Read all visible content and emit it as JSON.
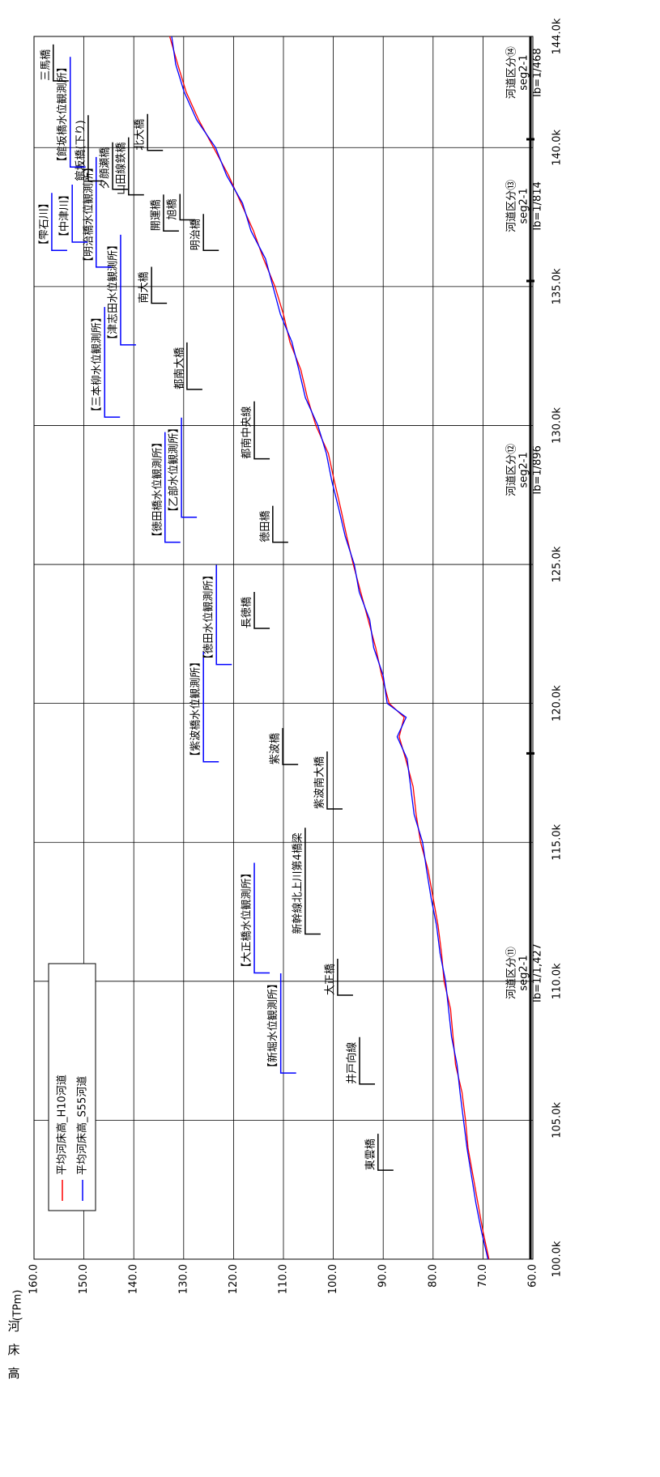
{
  "chart_data": {
    "type": "line",
    "ylabel": "河床高",
    "yunit": "(TPm)",
    "xlim": [
      100,
      144
    ],
    "ylim": [
      60,
      160
    ],
    "xticks": [
      {
        "value": 100,
        "label": "100.0k"
      },
      {
        "value": 105,
        "label": "105.0k"
      },
      {
        "value": 110,
        "label": "110.0k"
      },
      {
        "value": 115,
        "label": "115.0k"
      },
      {
        "value": 120,
        "label": "120.0k"
      },
      {
        "value": 125,
        "label": "125.0k"
      },
      {
        "value": 130,
        "label": "130.0k"
      },
      {
        "value": 135,
        "label": "135.0k"
      },
      {
        "value": 140,
        "label": "140.0k"
      },
      {
        "value": 144,
        "label": "144.0k"
      }
    ],
    "yticks": [
      {
        "value": 60,
        "label": "60.0"
      },
      {
        "value": 70,
        "label": "70.0"
      },
      {
        "value": 80,
        "label": "80.0"
      },
      {
        "value": 90,
        "label": "90.0"
      },
      {
        "value": 100,
        "label": "100.0"
      },
      {
        "value": 110,
        "label": "110.0"
      },
      {
        "value": 120,
        "label": "120.0"
      },
      {
        "value": 130,
        "label": "130.0"
      },
      {
        "value": 140,
        "label": "140.0"
      },
      {
        "value": 150,
        "label": "150.0"
      },
      {
        "value": 160,
        "label": "160.0"
      }
    ],
    "grid": true,
    "legend": "upper-left",
    "x": [
      100,
      101,
      102,
      103,
      104,
      105,
      106,
      107,
      108,
      109,
      110,
      111,
      112,
      113,
      114,
      115,
      116,
      117,
      118,
      118.8,
      119.5,
      120,
      121,
      122,
      123,
      124,
      125,
      126,
      127,
      128,
      129,
      130,
      131,
      132,
      133,
      134,
      135,
      136,
      137,
      138,
      139,
      140,
      141,
      142,
      143,
      144
    ],
    "series": [
      {
        "name": "平均河床高_H10河道",
        "color": "#ff0000",
        "values": [
          68.8,
          70,
          71,
          72,
          73,
          73.5,
          74.2,
          75.5,
          76,
          76.5,
          77.8,
          78.3,
          79,
          80,
          81,
          82.5,
          83.4,
          84,
          85.5,
          86.8,
          85.8,
          88.8,
          90.3,
          91.5,
          93,
          94.5,
          96,
          97.3,
          98.5,
          99.8,
          101,
          103.5,
          105.2,
          106.5,
          108.7,
          110,
          111.7,
          114,
          116,
          118.5,
          121,
          124,
          127,
          129.5,
          131.2,
          132.8
        ]
      },
      {
        "name": "平均河床高_S55河道",
        "color": "#0000ff",
        "values": [
          69,
          70.3,
          71.4,
          72.3,
          73.2,
          73.9,
          74.6,
          75.2,
          76.3,
          76.9,
          77.5,
          78.6,
          79.3,
          80.4,
          81.3,
          82.1,
          83.8,
          84.5,
          85.2,
          87.2,
          85.4,
          89.2,
          90,
          91.9,
          92.7,
          94.8,
          95.8,
          97.6,
          98.9,
          100.3,
          101.4,
          103.1,
          105.6,
          106.9,
          108.3,
          110.6,
          112.1,
          113.6,
          116.5,
          118.2,
          121.4,
          123.6,
          127.4,
          129.9,
          131.6,
          132.4
        ]
      }
    ],
    "sections": [
      {
        "x": 110.3,
        "label": "河道区分⑪",
        "seg": "seg2-1",
        "ib": "Ib=1/1,427"
      },
      {
        "x": 128.4,
        "label": "河道区分⑫",
        "seg": "seg2-1",
        "ib": "Ib=1/896"
      },
      {
        "x": 137.9,
        "label": "河道区分⑬",
        "seg": "seg2-1",
        "ib": "Ib=1/814"
      },
      {
        "x": 142.7,
        "label": "河道区分⑭",
        "seg": "seg2-1",
        "ib": "Ib=1/468"
      }
    ],
    "section_boundaries": [
      118.2,
      135.2,
      140.3
    ],
    "annotations": [
      {
        "text": "東雲橋",
        "x": 103.2,
        "y": 92.5,
        "color": "#000000"
      },
      {
        "text": "井戸向線",
        "x": 106.3,
        "y": 96.2,
        "color": "#000000"
      },
      {
        "text": "大正橋",
        "x": 109.5,
        "y": 100.6,
        "color": "#000000"
      },
      {
        "text": "新幹線北上川第4橋梁",
        "x": 111.7,
        "y": 107.1,
        "color": "#000000"
      },
      {
        "text": "【新堀水位観測所】",
        "x": 106.7,
        "y": 112,
        "color": "#0000ff"
      },
      {
        "text": "【大正橋水位観測所】",
        "x": 110.3,
        "y": 117.3,
        "color": "#0000ff"
      },
      {
        "text": "紫波南大橋",
        "x": 116.2,
        "y": 102.7,
        "color": "#000000"
      },
      {
        "text": "紫波橋",
        "x": 117.8,
        "y": 111.6,
        "color": "#000000"
      },
      {
        "text": "【紫波橋水位観測所】",
        "x": 117.9,
        "y": 127.5,
        "color": "#0000ff"
      },
      {
        "text": "【徳田水位観測所】",
        "x": 121.4,
        "y": 124.9,
        "color": "#0000ff"
      },
      {
        "text": "長徳橋",
        "x": 122.7,
        "y": 117.3,
        "color": "#000000"
      },
      {
        "text": "徳田橋",
        "x": 125.8,
        "y": 113.6,
        "color": "#000000"
      },
      {
        "text": "【徳田橋水位観測所】",
        "x": 125.8,
        "y": 135.2,
        "color": "#0000ff"
      },
      {
        "text": "【乙部水位観測所】",
        "x": 126.7,
        "y": 131.9,
        "color": "#0000ff"
      },
      {
        "text": "都南中央線",
        "x": 128.8,
        "y": 117.3,
        "color": "#000000"
      },
      {
        "text": "都南大橋",
        "x": 131.3,
        "y": 130.8,
        "color": "#000000"
      },
      {
        "text": "【三本柳水位観測所】",
        "x": 130.3,
        "y": 147.3,
        "color": "#0000ff"
      },
      {
        "text": "【津志田水位観測所】",
        "x": 132.9,
        "y": 144.1,
        "color": "#0000ff"
      },
      {
        "text": "南大橋",
        "x": 134.4,
        "y": 137.9,
        "color": "#000000"
      },
      {
        "text": "明治橋",
        "x": 136.3,
        "y": 127.5,
        "color": "#000000"
      },
      {
        "text": "【明治橋水位観測所】",
        "x": 135.7,
        "y": 149,
        "color": "#0000ff"
      },
      {
        "text": "【中津川】",
        "x": 136.6,
        "y": 153.8,
        "color": "#0000ff"
      },
      {
        "text": "【雫石川】",
        "x": 136.3,
        "y": 157.9,
        "color": "#0000ff"
      },
      {
        "text": "開運橋",
        "x": 137,
        "y": 135.5,
        "color": "#000000"
      },
      {
        "text": "旭橋",
        "x": 137.4,
        "y": 132.2,
        "color": "#000000"
      },
      {
        "text": "山田線鉄橋",
        "x": 138.3,
        "y": 142.5,
        "color": "#000000"
      },
      {
        "text": "夕顔瀬橋",
        "x": 138.5,
        "y": 145.7,
        "color": "#000000"
      },
      {
        "text": "館坂橋(下り)",
        "x": 138.8,
        "y": 150.6,
        "color": "#000000"
      },
      {
        "text": "【館坂橋水位観測所】",
        "x": 139.3,
        "y": 154.2,
        "color": "#0000ff"
      },
      {
        "text": "北大橋",
        "x": 139.9,
        "y": 138.7,
        "color": "#000000"
      },
      {
        "text": "三馬橋",
        "x": 142.4,
        "y": 157.6,
        "color": "#000000"
      }
    ]
  }
}
